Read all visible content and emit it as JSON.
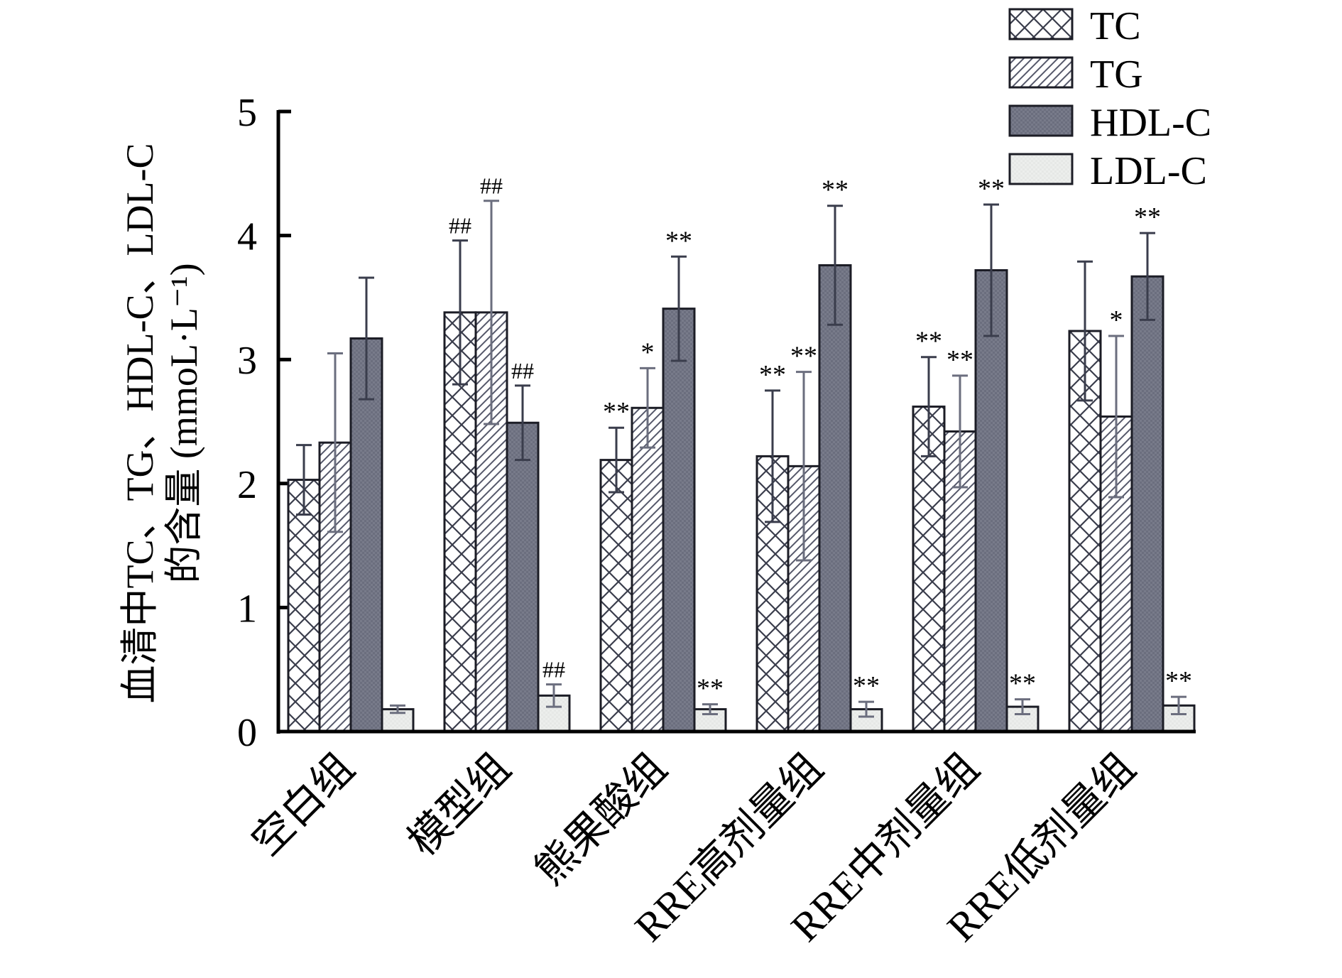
{
  "chart_data": {
    "type": "bar",
    "title": "",
    "xlabel": "",
    "ylabel_line1": "血清中TC、TG、HDL-C、LDL-C",
    "ylabel_line2": "的含量 (mmoL·L⁻¹)",
    "ylim": [
      0,
      5
    ],
    "yticks": [
      "0",
      "1",
      "2",
      "3",
      "4",
      "5"
    ],
    "grid": false,
    "legend_position": "top-right",
    "categories": [
      "空白组",
      "模型组",
      "熊果酸组",
      "RRE高剂量组",
      "RRE中剂量组",
      "RRE低剂量组"
    ],
    "series": [
      {
        "name": "TC",
        "pattern": "crosshatch",
        "color": "#ffffff",
        "values": [
          2.03,
          3.38,
          2.19,
          2.22,
          2.62,
          3.23
        ],
        "errors": [
          0.28,
          0.58,
          0.26,
          0.53,
          0.4,
          0.56
        ],
        "annotations": [
          "",
          "##",
          "**",
          "**",
          "**",
          ""
        ]
      },
      {
        "name": "TG",
        "pattern": "diagonal",
        "color": "#ffffff",
        "values": [
          2.33,
          3.38,
          2.61,
          2.14,
          2.42,
          2.54
        ],
        "errors": [
          0.72,
          0.9,
          0.32,
          0.76,
          0.45,
          0.65
        ],
        "annotations": [
          "",
          "##",
          "*",
          "**",
          "**",
          "*"
        ]
      },
      {
        "name": "HDL-C",
        "pattern": "solid-dark",
        "color": "#6b6e7e",
        "values": [
          3.17,
          2.49,
          3.41,
          3.76,
          3.72,
          3.67
        ],
        "errors": [
          0.49,
          0.3,
          0.42,
          0.48,
          0.53,
          0.35
        ],
        "annotations": [
          "",
          "##",
          "**",
          "**",
          "**",
          "**"
        ]
      },
      {
        "name": "LDL-C",
        "pattern": "solid-light",
        "color": "#e6e8e6",
        "values": [
          0.18,
          0.29,
          0.18,
          0.18,
          0.2,
          0.21
        ],
        "errors": [
          0.03,
          0.09,
          0.04,
          0.06,
          0.06,
          0.07
        ],
        "annotations": [
          "",
          "##",
          "**",
          "**",
          "**",
          "**"
        ]
      }
    ]
  }
}
